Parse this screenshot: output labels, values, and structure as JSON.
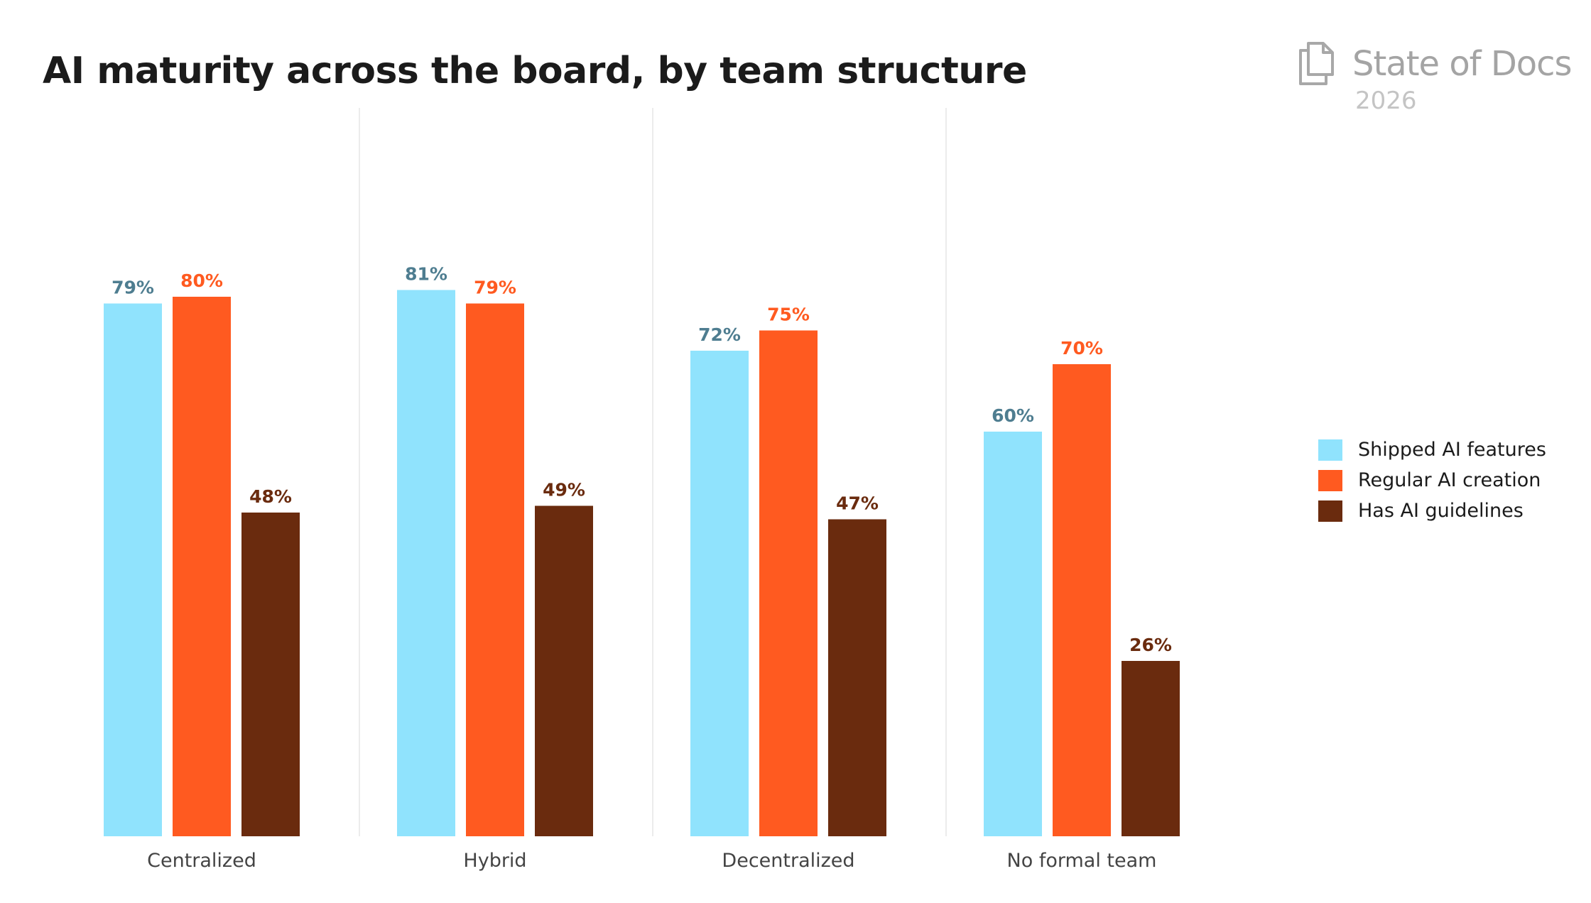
{
  "colors": {
    "shipped": "#90e3fd",
    "regular": "#ff5a20",
    "guidelines": "#6a2b0e",
    "shipped_label": "#4e7d90",
    "regular_label": "#ff5a20",
    "guidelines_label": "#6a2b0e",
    "category_label": "#444444",
    "divider": "#e6e6e6"
  },
  "logo": {
    "text": "State of Docs",
    "year": "2026",
    "icon": "document-stack-icon"
  },
  "chart_data": {
    "type": "bar",
    "title": "AI maturity across the board, by team structure",
    "xlabel": "",
    "ylabel": "",
    "ylim": [
      0,
      100
    ],
    "grid": false,
    "legend_position": "right",
    "categories": [
      "Centralized",
      "Hybrid",
      "Decentralized",
      "No formal team"
    ],
    "series": [
      {
        "name": "Shipped AI features",
        "values": [
          79,
          81,
          72,
          60
        ],
        "labels": [
          "79%",
          "81%",
          "72%",
          "60%"
        ]
      },
      {
        "name": "Regular AI creation",
        "values": [
          80,
          79,
          75,
          70
        ],
        "labels": [
          "80%",
          "79%",
          "75%",
          "70%"
        ]
      },
      {
        "name": "Has AI guidelines",
        "values": [
          48,
          49,
          47,
          26
        ],
        "labels": [
          "48%",
          "49%",
          "47%",
          "26%"
        ]
      }
    ]
  }
}
